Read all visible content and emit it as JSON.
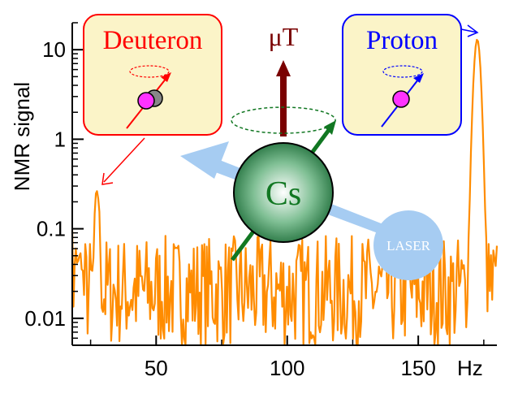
{
  "chart_data": {
    "type": "line",
    "title": "",
    "xlabel": "",
    "ylabel": "NMR signal",
    "x_unit": "Hz",
    "y_scale": "log",
    "xlim": [
      18,
      180
    ],
    "ylim": [
      0.005,
      20
    ],
    "x_ticks": [
      "50",
      "100",
      "150"
    ],
    "y_ticks": [
      "0.01",
      "0.1",
      "1",
      "10"
    ],
    "grid": false,
    "series": [
      {
        "color": "#ff8c00",
        "peaks": [
          {
            "x": 27.5,
            "y": 0.25
          },
          {
            "x": 172.5,
            "y": 13
          }
        ],
        "baseline_approx": 0.02
      }
    ]
  },
  "illustration": {
    "deuteron_label": "Deuteron",
    "proton_label": "Proton",
    "cs_label": "Cs",
    "field_label": "μT",
    "laser_label": "LASER",
    "colors": {
      "deuteron": "#ff0000",
      "proton": "#0000ff",
      "cs": "#117722",
      "field": "#7a0000",
      "laser": "#a6ccf2",
      "box_fill": "#fbf4c8",
      "particle": "#ff33ff"
    }
  }
}
